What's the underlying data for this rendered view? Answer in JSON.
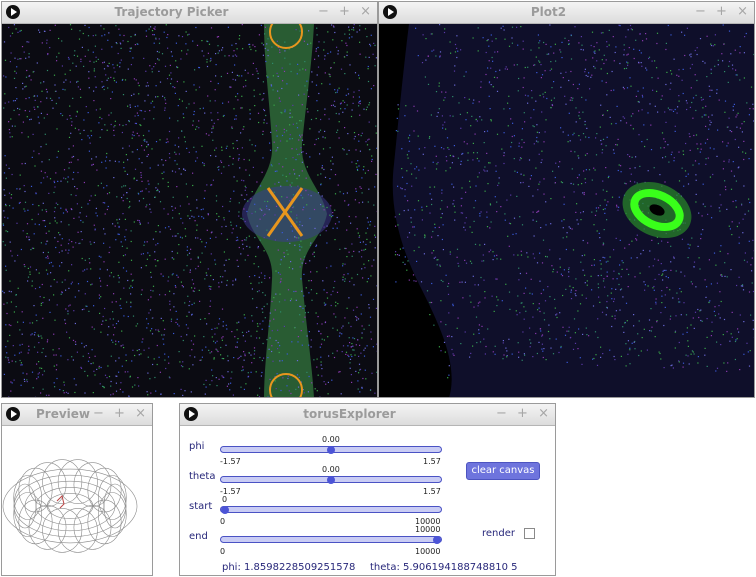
{
  "windows": {
    "trajectory": {
      "title": "Trajectory Picker",
      "controls": [
        "−",
        "+",
        "×"
      ]
    },
    "plot2": {
      "title": "Plot2",
      "controls": [
        "−",
        "+",
        "×"
      ]
    },
    "preview": {
      "title": "Preview",
      "controls": [
        "−",
        "+",
        "×"
      ]
    },
    "explorer": {
      "title": "torusExplorer",
      "controls": [
        "−",
        "+",
        "×"
      ]
    }
  },
  "sliders": {
    "phi": {
      "label": "phi",
      "value": "0.00",
      "min": "-1.57",
      "max": "1.57",
      "fraction": 0.5
    },
    "theta": {
      "label": "theta",
      "value": "0.00",
      "min": "-1.57",
      "max": "1.57",
      "fraction": 0.5
    },
    "start": {
      "label": "start",
      "value": "0",
      "min": "0",
      "max": "10000",
      "fraction": 0.0
    },
    "end": {
      "label": "end",
      "value": "10000",
      "min": "0",
      "max": "10000",
      "fraction": 1.0
    }
  },
  "buttons": {
    "clear_canvas": "clear canvas"
  },
  "render": {
    "label": "render",
    "checked": false
  },
  "status": {
    "phi": "phi: 1.8598228509251578",
    "theta": "theta: 5.906194188748810 5"
  },
  "colors": {
    "accent": "#5a60d8",
    "track": "#c9ccf4",
    "marker": "#e8961e",
    "canvas_bg": "#0b0b12"
  }
}
